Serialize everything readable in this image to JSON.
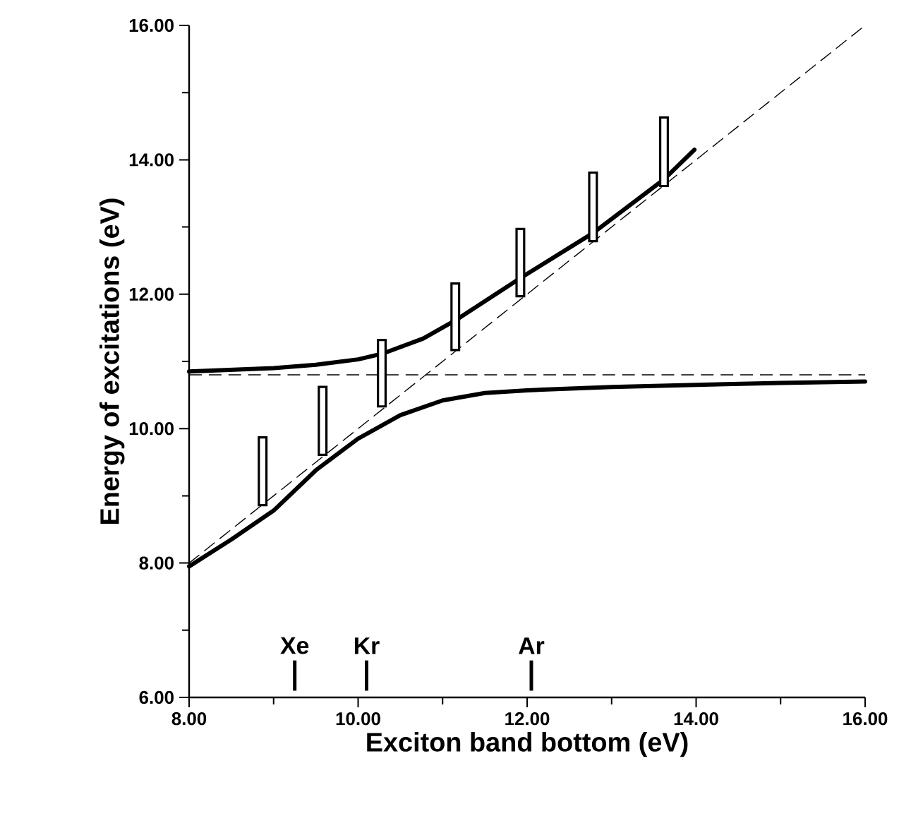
{
  "chart_data": {
    "type": "line",
    "xlabel": "Exciton band bottom (eV)",
    "ylabel": "Energy of excitations (eV)",
    "xlim": [
      8,
      16
    ],
    "ylim": [
      6,
      16
    ],
    "xticks": [
      {
        "value": 8,
        "label": "8.00"
      },
      {
        "value": 10,
        "label": "10.00"
      },
      {
        "value": 12,
        "label": "12.00"
      },
      {
        "value": 14,
        "label": "14.00"
      },
      {
        "value": 16,
        "label": "16.00"
      }
    ],
    "yticks": [
      {
        "value": 6,
        "label": "6.00"
      },
      {
        "value": 8,
        "label": "8.00"
      },
      {
        "value": 10,
        "label": "10.00"
      },
      {
        "value": 12,
        "label": "12.00"
      },
      {
        "value": 14,
        "label": "14.00"
      },
      {
        "value": 16,
        "label": "16.00"
      }
    ],
    "marker": "none",
    "series": [
      {
        "color": "#000000",
        "line_style": "solid",
        "x": [
          8,
          9,
          9.5,
          10,
          10.3,
          10.77,
          11.15,
          11.92,
          12.78,
          13.62,
          13.98
        ],
        "values": [
          10.85,
          10.9,
          10.95,
          11.03,
          11.12,
          11.34,
          11.61,
          12.24,
          12.91,
          13.71,
          14.15
        ]
      },
      {
        "color": "#000000",
        "line_style": "solid",
        "x": [
          8,
          8.5,
          9,
          9.5,
          10,
          10.5,
          11,
          11.5,
          12,
          13,
          14,
          15,
          16
        ],
        "values": [
          7.95,
          8.35,
          8.78,
          9.38,
          9.85,
          10.2,
          10.42,
          10.53,
          10.57,
          10.62,
          10.65,
          10.68,
          10.7
        ]
      },
      {
        "color": "#000000",
        "line_style": "dashed",
        "x": [
          8,
          16
        ],
        "values": [
          8,
          16
        ]
      },
      {
        "type": "bar",
        "color": "#000000",
        "x": [
          8.87,
          9.58,
          10.28,
          11.15,
          11.92,
          12.78,
          13.62
        ],
        "base": [
          8.86,
          9.61,
          10.33,
          11.17,
          11.97,
          12.79,
          13.61
        ],
        "values": [
          1.01,
          1.01,
          0.99,
          0.99,
          1.0,
          1.02,
          1.02
        ]
      }
    ],
    "ref_lines": [
      {
        "axis": "y",
        "value": 10.8,
        "color": "#000000",
        "line_style": "dashed"
      },
      {
        "axis": "x",
        "value": 9.25,
        "label": "Xe"
      },
      {
        "axis": "x",
        "value": 10.1,
        "label": "Kr"
      },
      {
        "axis": "x",
        "value": 12.05,
        "label": "Ar"
      }
    ]
  }
}
